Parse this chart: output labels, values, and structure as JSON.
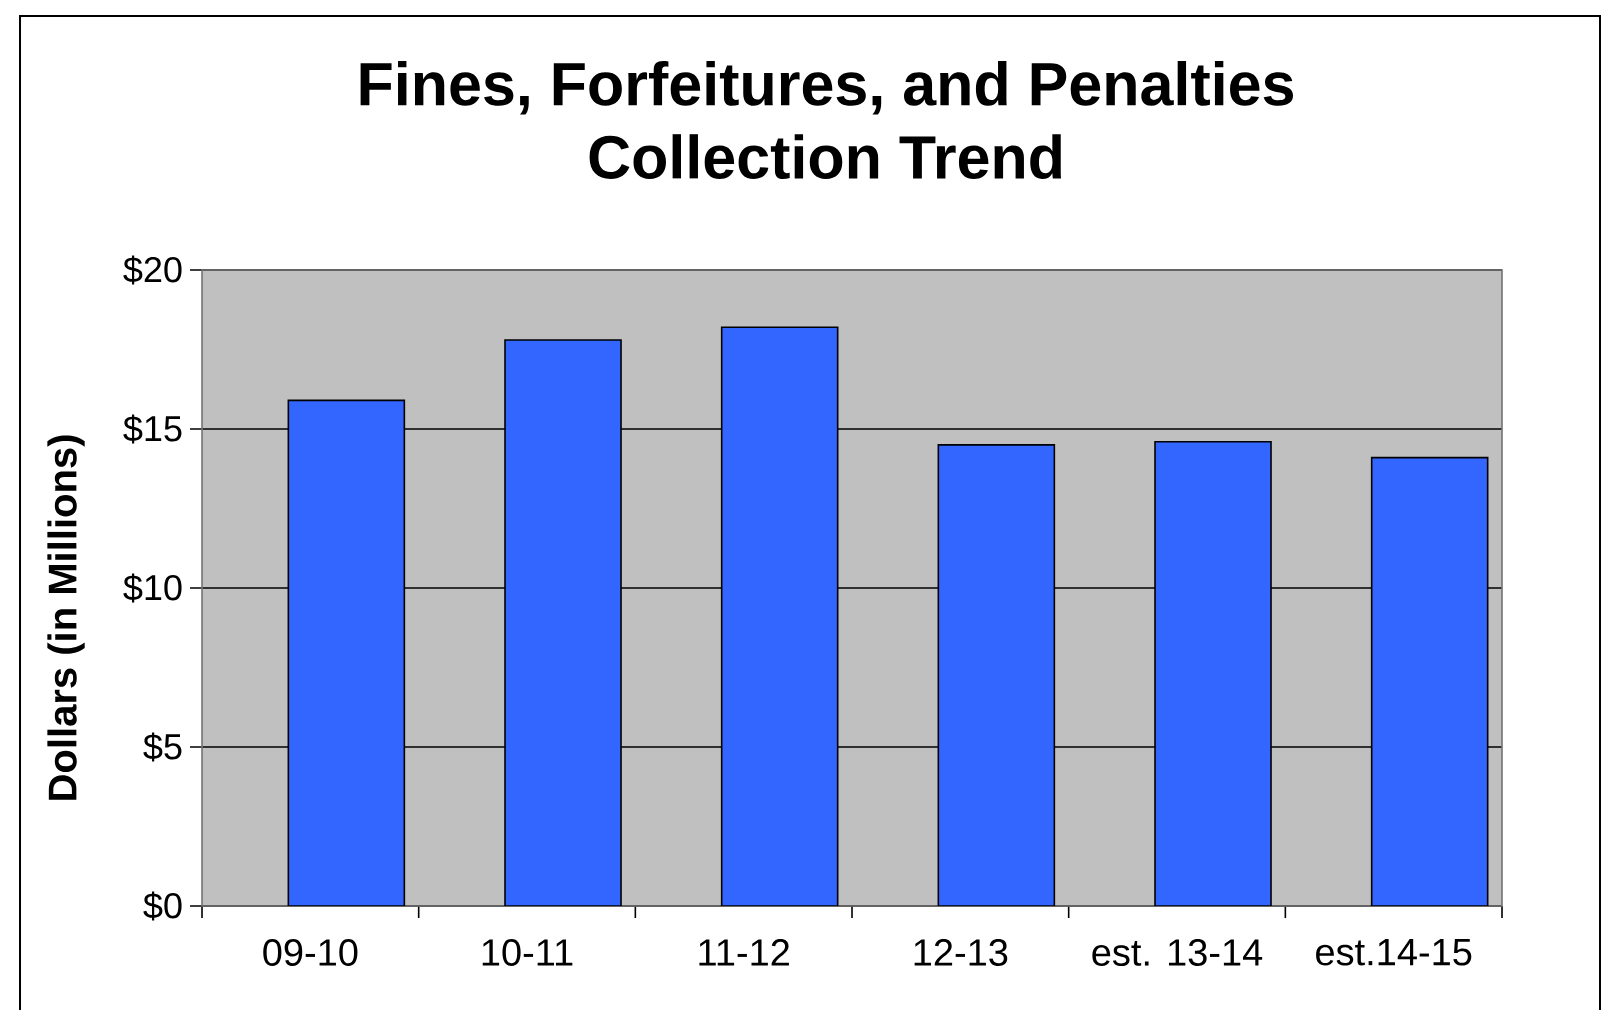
{
  "chart_data": {
    "type": "bar",
    "title": "Fines, Forfeitures, and Penalties Collection Trend",
    "ylabel": "Dollars (in Millions)",
    "categories": [
      "09-10",
      "10-11",
      "11-12",
      "12-13",
      "est. 13-14",
      "est.14-15"
    ],
    "values": [
      15.9,
      17.8,
      18.2,
      14.5,
      14.6,
      14.1
    ],
    "color": "#3366ff",
    "ylim": [
      0,
      20
    ],
    "yticks": [
      {
        "value": 0,
        "label": "$0"
      },
      {
        "value": 5,
        "label": "$5"
      },
      {
        "value": 10,
        "label": "$10"
      },
      {
        "value": 15,
        "label": "$15"
      },
      {
        "value": 20,
        "label": "$20"
      }
    ],
    "grid": "y"
  }
}
